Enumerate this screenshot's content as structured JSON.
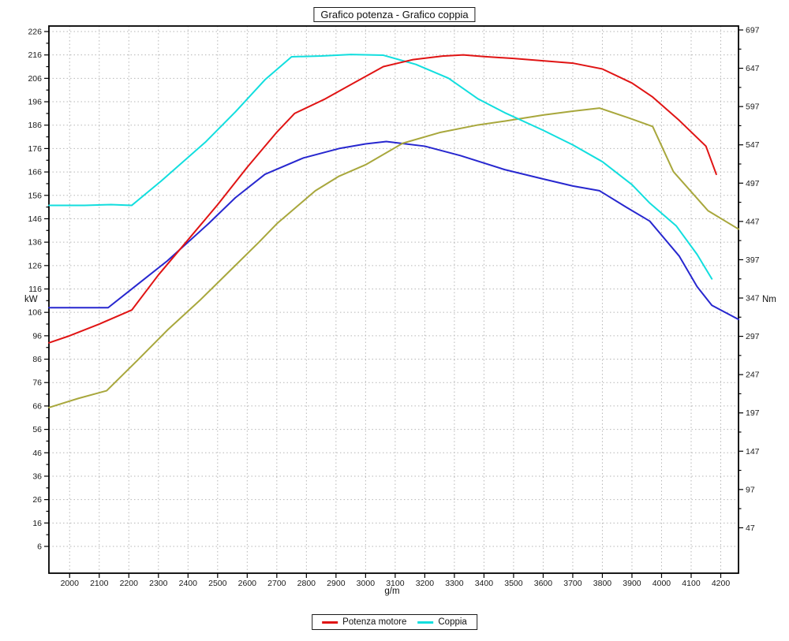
{
  "chart_data": {
    "type": "line",
    "title": "Grafico potenza - Grafico coppia",
    "xlabel": "g/m",
    "ylabel_left": "kW",
    "ylabel_right": "Nm",
    "x_range": [
      1930,
      4260
    ],
    "x_ticks": [
      2000,
      2100,
      2200,
      2300,
      2400,
      2500,
      2600,
      2700,
      2800,
      2900,
      3000,
      3100,
      3200,
      3300,
      3400,
      3500,
      3600,
      3700,
      3800,
      3900,
      4000,
      4100,
      4200
    ],
    "left_axis": {
      "unit": "kW",
      "min": 6,
      "max": 226,
      "tick_step": 10,
      "ticks": [
        226,
        216,
        206,
        196,
        186,
        176,
        166,
        156,
        146,
        136,
        126,
        116,
        106,
        96,
        86,
        76,
        66,
        56,
        46,
        36,
        26,
        16,
        6
      ]
    },
    "right_axis": {
      "unit": "Nm",
      "min": 47,
      "max": 697,
      "tick_step": 50,
      "ticks": [
        697,
        647,
        597,
        547,
        497,
        447,
        397,
        347,
        297,
        247,
        197,
        147,
        97,
        47
      ]
    },
    "grid": true,
    "legend_position": "bottom",
    "series": [
      {
        "id": "potenza-motore",
        "legend_label": "Potenza motore",
        "axis": "left",
        "unit": "kW",
        "color": "#e01414",
        "points": [
          [
            1930,
            93
          ],
          [
            2000,
            96
          ],
          [
            2100,
            101
          ],
          [
            2210,
            107
          ],
          [
            2300,
            122
          ],
          [
            2400,
            137
          ],
          [
            2500,
            152
          ],
          [
            2600,
            168
          ],
          [
            2700,
            183
          ],
          [
            2760,
            191
          ],
          [
            2860,
            197
          ],
          [
            2960,
            204
          ],
          [
            3060,
            211
          ],
          [
            3160,
            214
          ],
          [
            3260,
            215.5
          ],
          [
            3330,
            216
          ],
          [
            3400,
            215.3
          ],
          [
            3500,
            214.5
          ],
          [
            3600,
            213.5
          ],
          [
            3700,
            212.5
          ],
          [
            3800,
            210
          ],
          [
            3900,
            204
          ],
          [
            3970,
            198
          ],
          [
            4060,
            188
          ],
          [
            4150,
            177
          ],
          [
            4185,
            165
          ]
        ]
      },
      {
        "id": "coppia",
        "legend_label": "Coppia",
        "axis": "right",
        "unit": "Nm",
        "color": "#12dede",
        "points": [
          [
            1930,
            468
          ],
          [
            2050,
            468
          ],
          [
            2140,
            469
          ],
          [
            2210,
            468
          ],
          [
            2310,
            500
          ],
          [
            2460,
            551
          ],
          [
            2560,
            590
          ],
          [
            2660,
            632
          ],
          [
            2750,
            662
          ],
          [
            2850,
            663
          ],
          [
            2950,
            665
          ],
          [
            3060,
            664
          ],
          [
            3170,
            652
          ],
          [
            3280,
            634
          ],
          [
            3380,
            607
          ],
          [
            3470,
            589
          ],
          [
            3600,
            566
          ],
          [
            3700,
            547
          ],
          [
            3800,
            525
          ],
          [
            3900,
            495
          ],
          [
            3960,
            471
          ],
          [
            4050,
            441
          ],
          [
            4120,
            404
          ],
          [
            4170,
            372
          ]
        ]
      },
      {
        "id": "curva-blu",
        "legend_label": null,
        "axis": "left",
        "unit": "kW",
        "color": "#2727cf",
        "points": [
          [
            1930,
            108
          ],
          [
            2130,
            108
          ],
          [
            2230,
            118
          ],
          [
            2330,
            128
          ],
          [
            2470,
            144
          ],
          [
            2560,
            155
          ],
          [
            2660,
            165
          ],
          [
            2790,
            172
          ],
          [
            2910,
            176
          ],
          [
            3000,
            178
          ],
          [
            3070,
            179
          ],
          [
            3200,
            177
          ],
          [
            3320,
            173
          ],
          [
            3470,
            167
          ],
          [
            3600,
            163
          ],
          [
            3700,
            160
          ],
          [
            3790,
            158
          ],
          [
            3880,
            151
          ],
          [
            3960,
            145
          ],
          [
            4000,
            139
          ],
          [
            4060,
            130
          ],
          [
            4120,
            117
          ],
          [
            4170,
            109
          ],
          [
            4260,
            103
          ]
        ]
      },
      {
        "id": "curva-gialla",
        "legend_label": null,
        "axis": "right",
        "unit": "Nm",
        "color": "#a8a73c",
        "points": [
          [
            1930,
            204
          ],
          [
            2030,
            216
          ],
          [
            2125,
            226
          ],
          [
            2230,
            266
          ],
          [
            2330,
            305
          ],
          [
            2440,
            344
          ],
          [
            2540,
            382
          ],
          [
            2640,
            420
          ],
          [
            2700,
            444
          ],
          [
            2830,
            487
          ],
          [
            2910,
            506
          ],
          [
            3000,
            521
          ],
          [
            3125,
            549
          ],
          [
            3250,
            563
          ],
          [
            3380,
            573
          ],
          [
            3470,
            578
          ],
          [
            3600,
            586
          ],
          [
            3700,
            591
          ],
          [
            3790,
            595
          ],
          [
            3890,
            582
          ],
          [
            3970,
            571
          ],
          [
            4040,
            512
          ],
          [
            4157,
            461
          ],
          [
            4260,
            437
          ]
        ]
      }
    ]
  }
}
